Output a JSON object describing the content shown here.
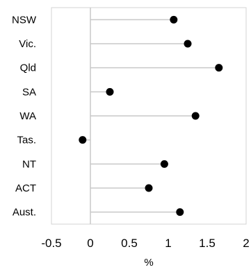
{
  "chart_data": {
    "type": "dot",
    "categories": [
      "NSW",
      "Vic.",
      "Qld",
      "SA",
      "WA",
      "Tas.",
      "NT",
      "ACT",
      "Aust."
    ],
    "values": [
      1.07,
      1.25,
      1.65,
      0.25,
      1.35,
      -0.1,
      0.95,
      0.75,
      1.15
    ],
    "xlabel": "%",
    "xlim": [
      -0.5,
      2
    ],
    "xticks": [
      -0.5,
      0,
      0.5,
      1,
      1.5,
      2
    ],
    "xtick_labels": [
      "-0.5",
      "0",
      "0.5",
      "1",
      "1.5",
      "2"
    ],
    "grid": false,
    "colors": {
      "marker": "#000000",
      "stem": "#c8c8c8",
      "axis": "#c8c8c8",
      "frame": "#d3d3d3",
      "text": "#000000"
    }
  }
}
